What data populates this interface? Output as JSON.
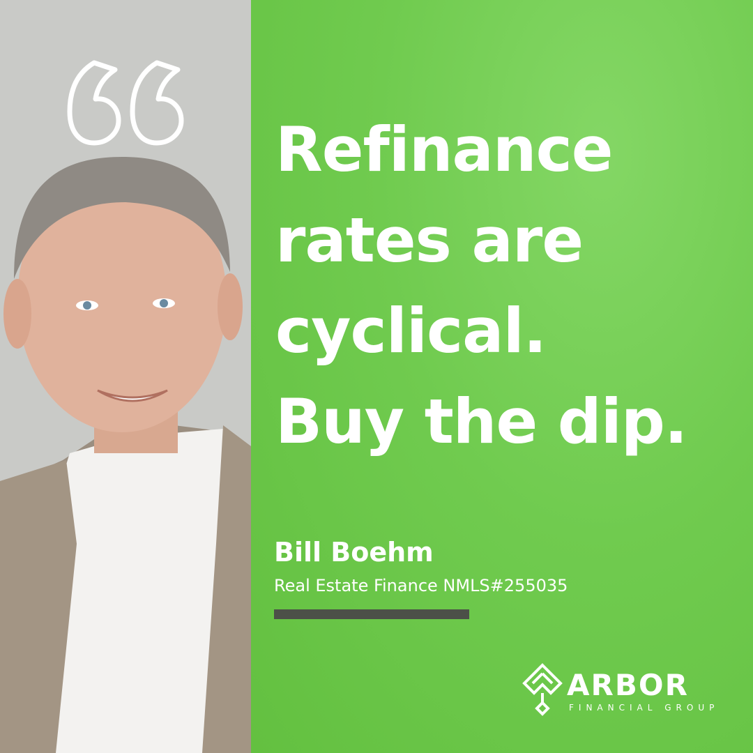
{
  "quote": {
    "lines": [
      "Refinance",
      "rates are",
      "cyclical.",
      "Buy the dip."
    ]
  },
  "person": {
    "name": "Bill Boehm",
    "title": "Real Estate Finance NMLS#255035"
  },
  "brand": {
    "name": "ARBOR",
    "subtitle": "FINANCIAL GROUP",
    "accent_color": "#6cc84a",
    "panel_color": "#c9cac7",
    "bar_color": "#4c5048"
  },
  "icons": [
    "quote-mark-icon",
    "arbor-logo-icon"
  ]
}
